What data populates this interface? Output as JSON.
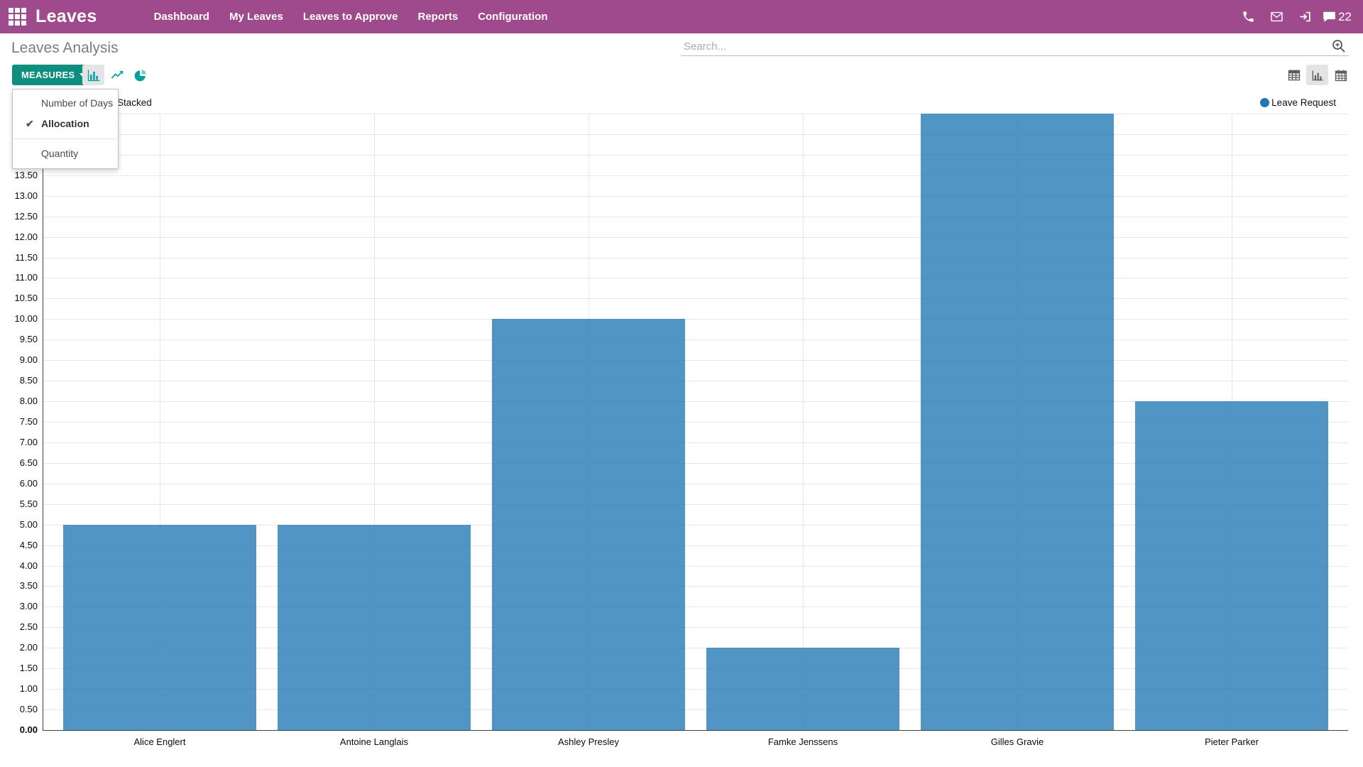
{
  "navbar": {
    "brand": "Leaves",
    "menu": [
      "Dashboard",
      "My Leaves",
      "Leaves to Approve",
      "Reports",
      "Configuration"
    ],
    "message_count": "22",
    "bg_color": "#9e4a8c"
  },
  "page": {
    "title": "Leaves Analysis"
  },
  "search": {
    "placeholder": "Search..."
  },
  "toolbar": {
    "measures_label": "MEASURES",
    "measures_menu": {
      "items": [
        {
          "label": "Number of Days",
          "checked": false
        },
        {
          "label": "Allocation",
          "checked": true
        },
        {
          "label": "Quantity",
          "checked": false
        }
      ]
    },
    "chart_types": [
      "bar",
      "line",
      "pie"
    ],
    "active_chart_type": "bar",
    "view_switcher": [
      "pivot",
      "graph",
      "calendar"
    ],
    "active_view": "graph"
  },
  "chart_controls": {
    "stacked_label": "Stacked"
  },
  "legend": {
    "label": "Leave Request",
    "color": "#1f77b4"
  },
  "icons": {
    "apps_grid": "3x3-grid",
    "phone": "phone-receiver",
    "envelope": "mail",
    "sign_in": "arrow-into-bracket",
    "messages": "speech-bubble",
    "search_zoom": "magnifier-plus",
    "bar_chart": "bars",
    "line_chart": "zigzag-line",
    "pie_chart": "pie-slice",
    "pivot_view": "table-grid",
    "graph_view": "bars-axis",
    "calendar_view": "calendar",
    "check": "checkmark",
    "caret": "triangle-down"
  },
  "chart_data": {
    "type": "bar",
    "title": "",
    "measure": "Allocation",
    "categories": [
      "Alice Englert",
      "Antoine Langlais",
      "Ashley Presley",
      "Famke Jenssens",
      "Gilles Gravie",
      "Pieter Parker"
    ],
    "series": [
      {
        "name": "Leave Request",
        "values": [
          5.0,
          5.0,
          10.0,
          2.0,
          15.0,
          8.0
        ]
      }
    ],
    "ylim": [
      0,
      15
    ],
    "ytick_step": 0.5,
    "ytick_format_decimals": 2,
    "grid": true,
    "legend_position": "top-right",
    "bar_color": "#1f77b4",
    "bar_opacity": 0.78
  }
}
